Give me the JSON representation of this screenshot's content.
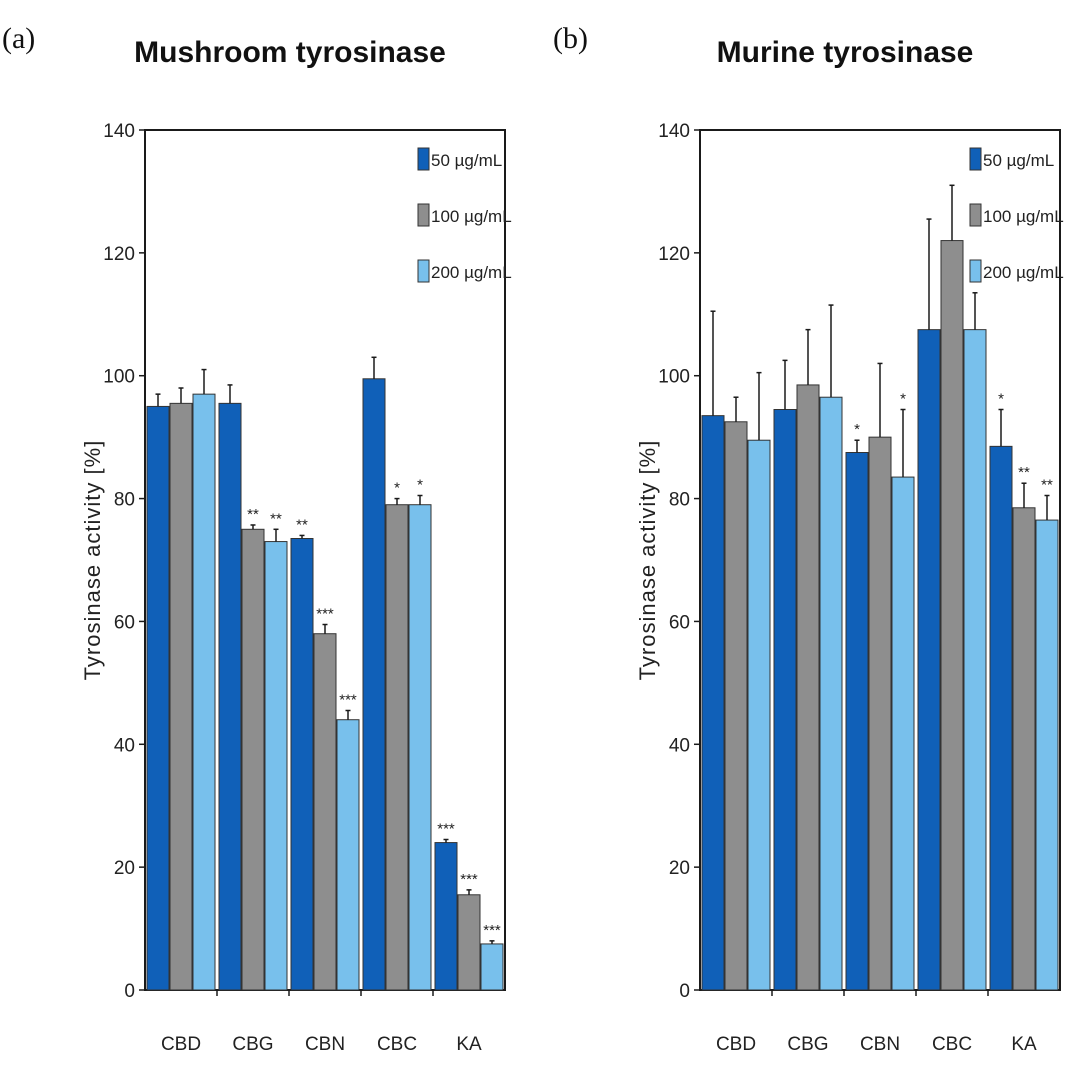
{
  "colors": {
    "s50": "#1060b8",
    "s100": "#8e8e8e",
    "s200": "#78c0ec",
    "edge": "#1a1a1a"
  },
  "chart_data": [
    {
      "type": "bar",
      "panel_label": "(a)",
      "title": "Mushroom tyrosinase",
      "xlabel": "",
      "ylabel": "Tyrosinase activity  [%]",
      "ylim": [
        0,
        140
      ],
      "yticks": [
        "0",
        "20",
        "40",
        "60",
        "80",
        "100",
        "120",
        "140"
      ],
      "legend_position": "top-right",
      "categories": [
        "CBD",
        "CBG",
        "CBN",
        "CBC",
        "KA"
      ],
      "series": [
        {
          "name": "50 µg/mL",
          "values": [
            95,
            95.5,
            73.5,
            99.5,
            24
          ],
          "errors": [
            2,
            3,
            0.5,
            3.5,
            0.5
          ],
          "marks": [
            "",
            "",
            "**",
            "",
            "***"
          ]
        },
        {
          "name": "100 µg/mL",
          "values": [
            95.5,
            75,
            58,
            79,
            15.5
          ],
          "errors": [
            2.5,
            0.7,
            1.5,
            1.0,
            0.8
          ],
          "marks": [
            "",
            "**",
            "***",
            "*",
            "***"
          ]
        },
        {
          "name": "200 µg/mL",
          "values": [
            97,
            73,
            44,
            79,
            7.5
          ],
          "errors": [
            4,
            2,
            1.5,
            1.5,
            0.5
          ],
          "marks": [
            "",
            "**",
            "***",
            "*",
            "***"
          ]
        }
      ]
    },
    {
      "type": "bar",
      "panel_label": "(b)",
      "title": "Murine tyrosinase",
      "xlabel": "",
      "ylabel": "Tyrosinase activity  [%]",
      "ylim": [
        0,
        140
      ],
      "yticks": [
        "0",
        "20",
        "40",
        "60",
        "80",
        "100",
        "120",
        "140"
      ],
      "legend_position": "top-right",
      "categories": [
        "CBD",
        "CBG",
        "CBN",
        "CBC",
        "KA"
      ],
      "series": [
        {
          "name": "50 µg/mL",
          "values": [
            93.5,
            94.5,
            87.5,
            107.5,
            88.5
          ],
          "errors": [
            17,
            8,
            2,
            18,
            6
          ],
          "marks": [
            "",
            "",
            "*",
            "",
            "*"
          ]
        },
        {
          "name": "100 µg/mL",
          "values": [
            92.5,
            98.5,
            90,
            122,
            78.5
          ],
          "errors": [
            4,
            9,
            12,
            9,
            4
          ],
          "marks": [
            "",
            "",
            "",
            "",
            "**"
          ]
        },
        {
          "name": "200 µg/mL",
          "values": [
            89.5,
            96.5,
            83.5,
            107.5,
            76.5
          ],
          "errors": [
            11,
            15,
            11,
            6,
            4
          ],
          "marks": [
            "",
            "",
            "*",
            "",
            "**"
          ]
        }
      ]
    }
  ]
}
